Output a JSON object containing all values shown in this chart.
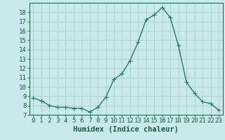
{
  "x": [
    0,
    1,
    2,
    3,
    4,
    5,
    6,
    7,
    8,
    9,
    10,
    11,
    12,
    13,
    14,
    15,
    16,
    17,
    18,
    19,
    20,
    21,
    22,
    23
  ],
  "y": [
    8.8,
    8.5,
    8.0,
    7.8,
    7.8,
    7.7,
    7.7,
    7.3,
    7.8,
    8.9,
    10.8,
    11.4,
    12.8,
    14.8,
    17.2,
    17.7,
    18.5,
    17.4,
    14.4,
    10.5,
    9.3,
    8.4,
    8.2,
    7.5
  ],
  "line_color": "#2a7a68",
  "marker": "+",
  "markersize": 4,
  "linewidth": 1.0,
  "bg_color": "#c8eaea",
  "grid_color": "#b0d0d0",
  "xlabel": "Humidex (Indice chaleur)",
  "ylim": [
    7,
    19
  ],
  "xlim": [
    -0.5,
    23.5
  ],
  "yticks": [
    7,
    8,
    9,
    10,
    11,
    12,
    13,
    14,
    15,
    16,
    17,
    18
  ],
  "xticks": [
    0,
    1,
    2,
    3,
    4,
    5,
    6,
    7,
    8,
    9,
    10,
    11,
    12,
    13,
    14,
    15,
    16,
    17,
    18,
    19,
    20,
    21,
    22,
    23
  ],
  "tick_color": "#1a5a4a",
  "label_color": "#1a5a4a",
  "xlabel_fontsize": 7.5,
  "tick_fontsize": 6.5
}
